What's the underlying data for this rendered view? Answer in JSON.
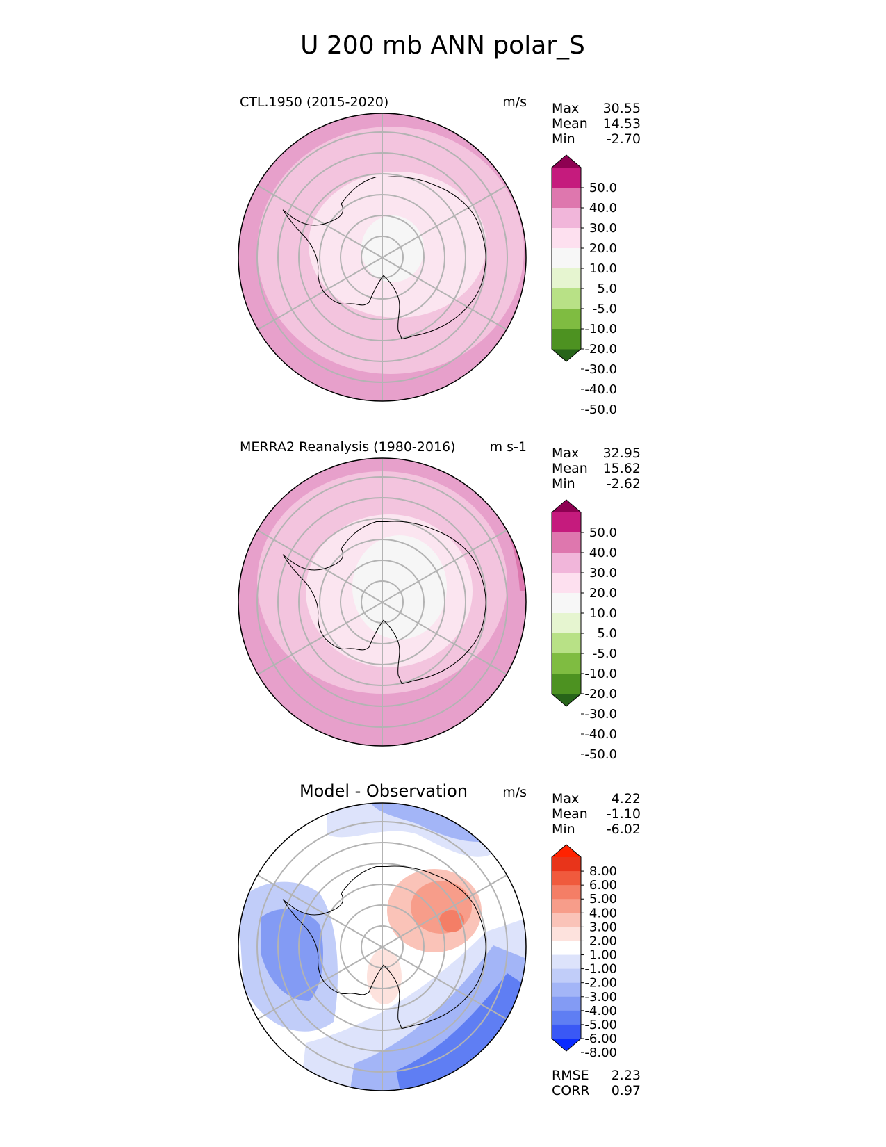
{
  "figure_title": "U 200 mb ANN polar_S",
  "colors": {
    "pink_ramp": [
      "#276419",
      "#4d9221",
      "#7fbc41",
      "#b8e186",
      "#e6f5d0",
      "#f7f7f7",
      "#fde0ef",
      "#f1b6da",
      "#de77ae",
      "#c51b7d",
      "#8e0152"
    ],
    "div_ramp": [
      "#0a2bff",
      "#3a58f5",
      "#5f7ef3",
      "#839bf4",
      "#a3b5f7",
      "#c1cdf9",
      "#dde3fb",
      "#ffffff",
      "#fde2dd",
      "#fac3b8",
      "#f79d8a",
      "#f47e66",
      "#f05a3d",
      "#e8341a",
      "#ff2200"
    ],
    "grid": "#b3b3b3",
    "coast": "#000000"
  },
  "chart_data": [
    {
      "type": "heatmap",
      "projection": "south-polar-stereographic",
      "title_left": "CTL.1950 (2015-2020)",
      "units": "m/s",
      "stats": {
        "max_label": "Max",
        "max": "30.55",
        "mean_label": "Mean",
        "mean": "14.53",
        "min_label": "Min",
        "min": "-2.70"
      },
      "colorbar": {
        "ramp": "pink_ramp",
        "levels": [
          "50.0",
          "40.0",
          "30.0",
          "20.0",
          "10.0",
          "5.0",
          "-5.0",
          "-10.0",
          "-20.0",
          "-30.0",
          "-40.0",
          "-50.0"
        ]
      }
    },
    {
      "type": "heatmap",
      "projection": "south-polar-stereographic",
      "title_left": "MERRA2 Reanalysis (1980-2016)",
      "units": "m s-1",
      "stats": {
        "max_label": "Max",
        "max": "32.95",
        "mean_label": "Mean",
        "mean": "15.62",
        "min_label": "Min",
        "min": "-2.62"
      },
      "colorbar": {
        "ramp": "pink_ramp",
        "levels": [
          "50.0",
          "40.0",
          "30.0",
          "20.0",
          "10.0",
          "5.0",
          "-5.0",
          "-10.0",
          "-20.0",
          "-30.0",
          "-40.0",
          "-50.0"
        ]
      }
    },
    {
      "type": "heatmap",
      "projection": "south-polar-stereographic",
      "title_center": "Model - Observation",
      "units": "m/s",
      "stats": {
        "max_label": "Max",
        "max": "4.22",
        "mean_label": "Mean",
        "mean": "-1.10",
        "min_label": "Min",
        "min": "-6.02"
      },
      "colorbar": {
        "ramp": "div_ramp",
        "levels": [
          "8.00",
          "6.00",
          "5.00",
          "4.00",
          "3.00",
          "2.00",
          "1.00",
          "-1.00",
          "-2.00",
          "-3.00",
          "-4.00",
          "-5.00",
          "-6.00",
          "-8.00"
        ]
      },
      "metrics": {
        "rmse_label": "RMSE",
        "rmse": "2.23",
        "corr_label": "CORR",
        "corr": "0.97"
      }
    }
  ]
}
